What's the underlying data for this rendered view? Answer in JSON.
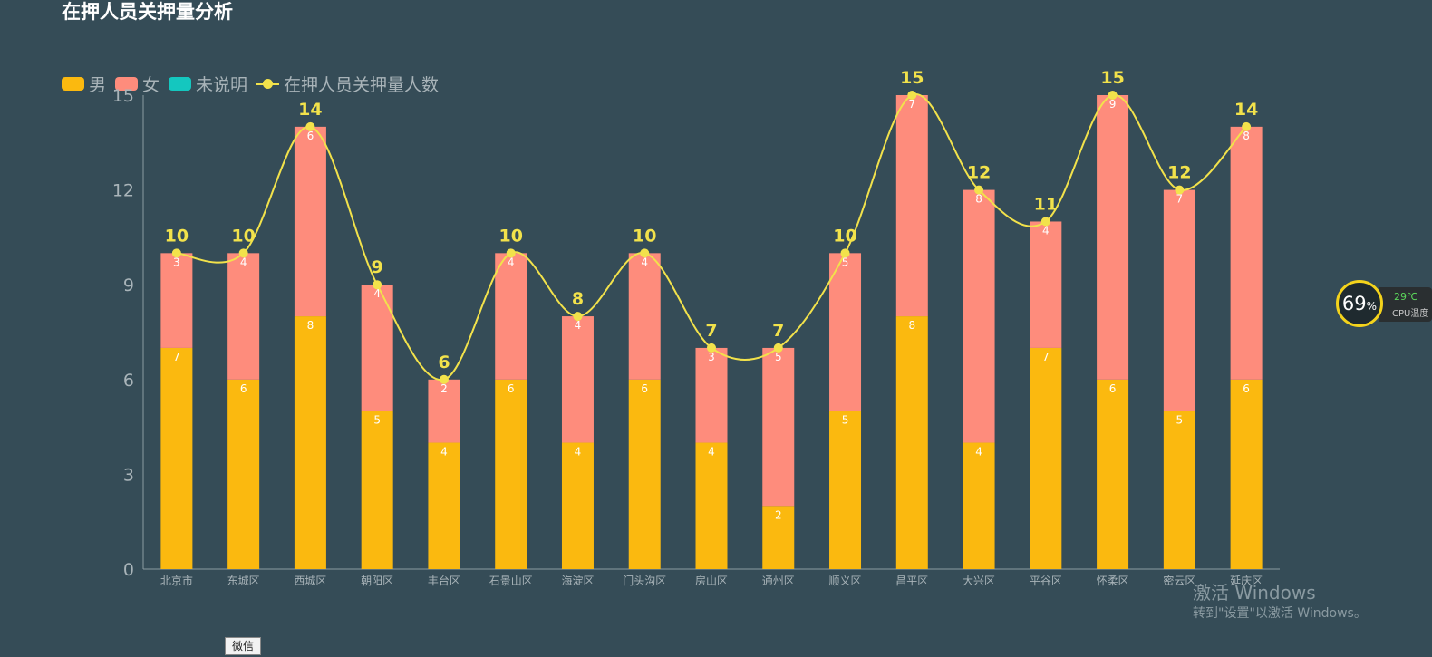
{
  "title": "在押人员关押量分析",
  "legend": {
    "male": "男",
    "female": "女",
    "unspecified": "未说明",
    "total": "在押人员关押量人数"
  },
  "colors": {
    "background": "#354c57",
    "male": "#fbb90f",
    "female": "#fe8c7c",
    "unspecified": "#14c7bf",
    "total_line": "#f2e24b",
    "axis_text": "#a9b4b9"
  },
  "chart_data": {
    "type": "bar",
    "stacked": true,
    "title": "在押人员关押量分析",
    "categories": [
      "北京市",
      "东城区",
      "西城区",
      "朝阳区",
      "丰台区",
      "石景山区",
      "海淀区",
      "门头沟区",
      "房山区",
      "通州区",
      "顺义区",
      "昌平区",
      "大兴区",
      "平谷区",
      "怀柔区",
      "密云区",
      "延庆区"
    ],
    "series": [
      {
        "name": "男",
        "type": "bar",
        "values": [
          7,
          6,
          8,
          5,
          4,
          6,
          4,
          6,
          4,
          2,
          5,
          8,
          4,
          7,
          6,
          5,
          6
        ]
      },
      {
        "name": "女",
        "type": "bar",
        "values": [
          3,
          4,
          6,
          4,
          2,
          4,
          4,
          4,
          3,
          5,
          5,
          7,
          8,
          4,
          9,
          7,
          8
        ]
      },
      {
        "name": "未说明",
        "type": "bar",
        "values": [
          0,
          0,
          0,
          0,
          0,
          0,
          0,
          0,
          0,
          0,
          0,
          0,
          0,
          0,
          0,
          0,
          0
        ]
      },
      {
        "name": "在押人员关押量人数",
        "type": "line",
        "smooth": true,
        "values": [
          10,
          10,
          14,
          9,
          6,
          10,
          8,
          10,
          7,
          7,
          10,
          15,
          12,
          11,
          15,
          12,
          14
        ]
      }
    ],
    "ylim": [
      0,
      15
    ],
    "yticks": [
      0,
      3,
      6,
      9,
      12,
      15
    ],
    "legend_position": "top-left",
    "grid": false
  },
  "gadget": {
    "percent": "69",
    "percent_sign": "%",
    "temp": "29℃",
    "label": "CPU温度"
  },
  "watermark": {
    "line1": "激活 Windows",
    "line2": "转到\"设置\"以激活 Windows。"
  },
  "wechat_label": "微信"
}
